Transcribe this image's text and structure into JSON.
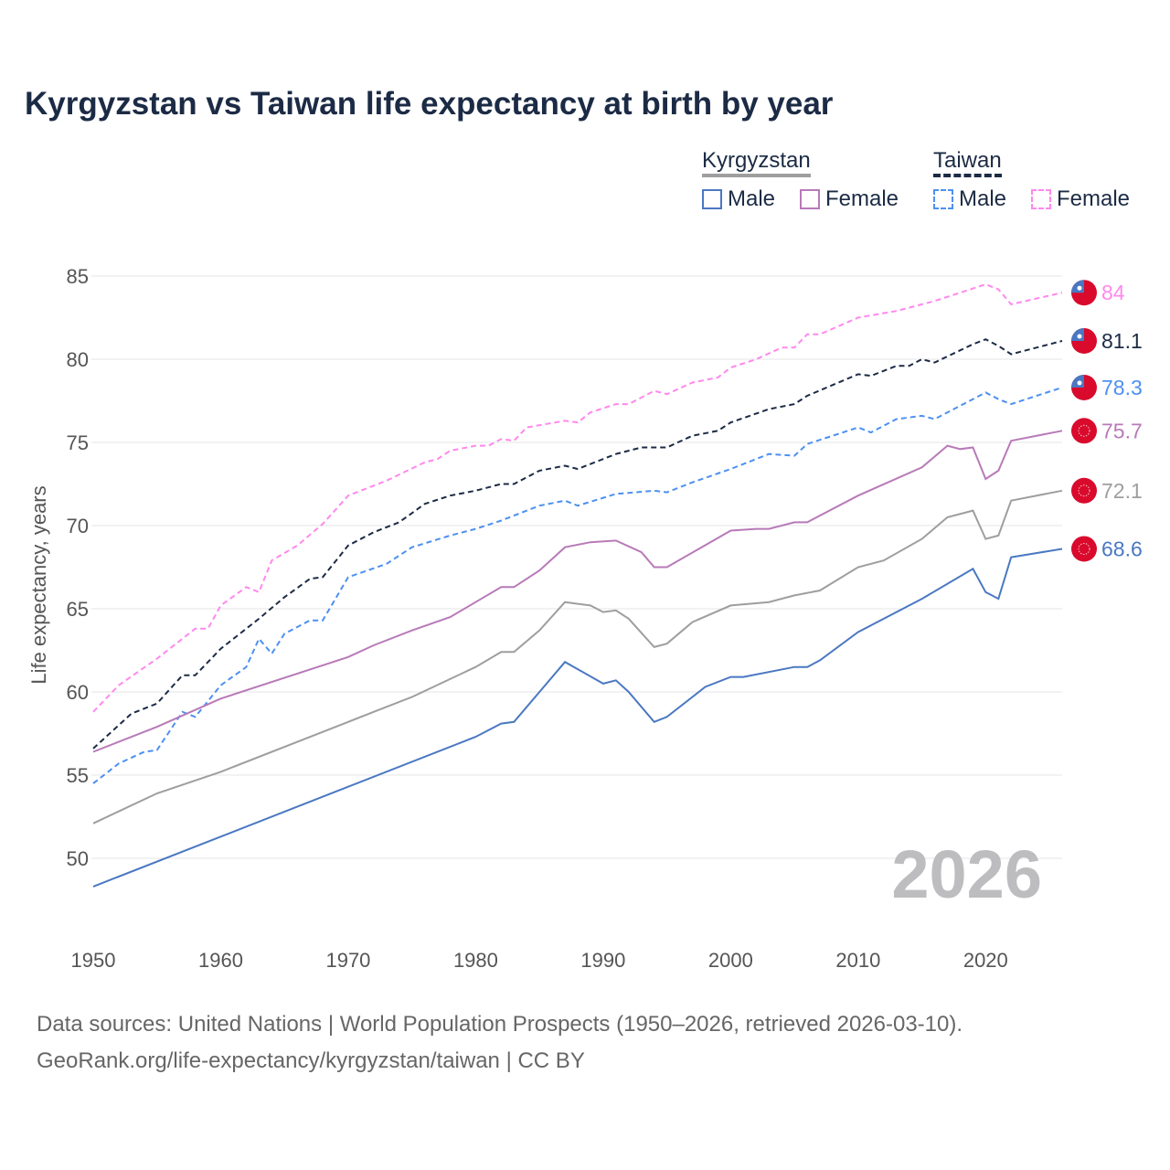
{
  "title": "Kyrgyzstan vs Taiwan life expectancy at birth by year",
  "legend": {
    "groups": [
      {
        "name": "Kyrgyzstan",
        "items": [
          "Male",
          "Female"
        ]
      },
      {
        "name": "Taiwan",
        "items": [
          "Male",
          "Female"
        ]
      }
    ]
  },
  "footer": {
    "line1": "Data sources: United Nations | World Population Prospects (1950–2026, retrieved 2026-03-10).",
    "line2": "GeoRank.org/life-expectancy/kyrgyzstan/taiwan | CC BY"
  },
  "chart_data": {
    "type": "line",
    "title": "Kyrgyzstan vs Taiwan life expectancy at birth by year",
    "xlabel": "",
    "ylabel": "Life expectancy, years",
    "xlim": [
      1950,
      2026
    ],
    "ylim": [
      47,
      87
    ],
    "xticks": [
      1950,
      1960,
      1970,
      1980,
      1990,
      2000,
      2010,
      2020
    ],
    "yticks": [
      50,
      55,
      60,
      65,
      70,
      75,
      80,
      85
    ],
    "grid": true,
    "watermark_year": "2026",
    "series": [
      {
        "name": "Taiwan Female",
        "country": "Taiwan",
        "color": "#ff88ee",
        "dashed": true,
        "end_label": "84",
        "x": [
          1950,
          1952,
          1955,
          1958,
          1959,
          1960,
          1962,
          1963,
          1964,
          1966,
          1968,
          1970,
          1973,
          1976,
          1977,
          1978,
          1980,
          1981,
          1982,
          1983,
          1984,
          1987,
          1988,
          1989,
          1991,
          1992,
          1994,
          1995,
          1997,
          1999,
          2000,
          2002,
          2004,
          2005,
          2006,
          2007,
          2010,
          2013,
          2014,
          2016,
          2020,
          2021,
          2022,
          2026
        ],
        "y": [
          58.8,
          60.4,
          62.0,
          63.8,
          63.8,
          65.2,
          66.3,
          66.0,
          67.9,
          68.8,
          70.1,
          71.8,
          72.7,
          73.8,
          74.0,
          74.5,
          74.8,
          74.8,
          75.2,
          75.1,
          75.9,
          76.3,
          76.2,
          76.8,
          77.3,
          77.3,
          78.1,
          77.9,
          78.6,
          78.9,
          79.5,
          80.0,
          80.7,
          80.7,
          81.5,
          81.5,
          82.5,
          82.9,
          83.1,
          83.5,
          84.5,
          84.2,
          83.3,
          84.0
        ]
      },
      {
        "name": "Taiwan",
        "country": "Taiwan",
        "color": "#1c2b45",
        "dashed": true,
        "end_label": "81.1",
        "x": [
          1950,
          1953,
          1955,
          1957,
          1958,
          1960,
          1963,
          1965,
          1967,
          1968,
          1970,
          1972,
          1974,
          1976,
          1978,
          1980,
          1982,
          1983,
          1985,
          1987,
          1988,
          1991,
          1993,
          1995,
          1997,
          1999,
          2000,
          2003,
          2005,
          2006,
          2010,
          2011,
          2013,
          2014,
          2015,
          2016,
          2019,
          2020,
          2021,
          2022,
          2026
        ],
        "y": [
          56.6,
          58.7,
          59.3,
          61.0,
          61.0,
          62.6,
          64.4,
          65.7,
          66.8,
          66.9,
          68.8,
          69.6,
          70.2,
          71.3,
          71.8,
          72.1,
          72.5,
          72.5,
          73.3,
          73.6,
          73.4,
          74.3,
          74.7,
          74.7,
          75.4,
          75.7,
          76.2,
          77.0,
          77.3,
          77.8,
          79.1,
          79.0,
          79.6,
          79.6,
          80.0,
          79.8,
          80.9,
          81.2,
          80.8,
          80.3,
          81.1
        ]
      },
      {
        "name": "Taiwan Male",
        "country": "Taiwan",
        "color": "#4d90f0",
        "dashed": true,
        "end_label": "78.3",
        "x": [
          1950,
          1952,
          1954,
          1955,
          1957,
          1958,
          1960,
          1962,
          1963,
          1964,
          1965,
          1967,
          1968,
          1970,
          1973,
          1975,
          1978,
          1980,
          1982,
          1985,
          1987,
          1988,
          1991,
          1994,
          1995,
          1997,
          2000,
          2003,
          2005,
          2006,
          2010,
          2011,
          2013,
          2015,
          2016,
          2019,
          2020,
          2021,
          2022,
          2026
        ],
        "y": [
          54.5,
          55.7,
          56.4,
          56.5,
          58.8,
          58.5,
          60.4,
          61.5,
          63.2,
          62.3,
          63.5,
          64.3,
          64.3,
          66.9,
          67.7,
          68.7,
          69.4,
          69.8,
          70.3,
          71.2,
          71.5,
          71.2,
          71.9,
          72.1,
          72.0,
          72.6,
          73.4,
          74.3,
          74.2,
          74.9,
          75.9,
          75.6,
          76.4,
          76.6,
          76.4,
          77.6,
          78.0,
          77.6,
          77.3,
          78.3
        ]
      },
      {
        "name": "Kyrgyzstan Female",
        "country": "Kyrgyzstan",
        "color": "#b87ab8",
        "dashed": false,
        "end_label": "75.7",
        "x": [
          1950,
          1955,
          1960,
          1970,
          1972,
          1975,
          1978,
          1980,
          1982,
          1983,
          1985,
          1987,
          1989,
          1991,
          1993,
          1994,
          1995,
          2000,
          2002,
          2003,
          2005,
          2006,
          2010,
          2015,
          2017,
          2018,
          2019,
          2020,
          2021,
          2022,
          2026
        ],
        "y": [
          56.4,
          57.9,
          59.6,
          62.1,
          62.8,
          63.7,
          64.5,
          65.4,
          66.3,
          66.3,
          67.3,
          68.7,
          69.0,
          69.1,
          68.4,
          67.5,
          67.5,
          69.7,
          69.8,
          69.8,
          70.2,
          70.2,
          71.8,
          73.5,
          74.8,
          74.6,
          74.7,
          72.8,
          73.3,
          75.1,
          75.7
        ]
      },
      {
        "name": "Kyrgyzstan",
        "country": "Kyrgyzstan",
        "color": "#9e9e9e",
        "dashed": false,
        "end_label": "72.1",
        "x": [
          1950,
          1955,
          1960,
          1970,
          1972,
          1975,
          1980,
          1982,
          1983,
          1985,
          1987,
          1989,
          1990,
          1991,
          1992,
          1994,
          1995,
          1997,
          2000,
          2003,
          2005,
          2007,
          2010,
          2012,
          2015,
          2017,
          2019,
          2020,
          2021,
          2022,
          2026
        ],
        "y": [
          52.1,
          53.9,
          55.2,
          58.2,
          58.8,
          59.7,
          61.5,
          62.4,
          62.4,
          63.7,
          65.4,
          65.2,
          64.8,
          64.9,
          64.4,
          62.7,
          62.9,
          64.2,
          65.2,
          65.4,
          65.8,
          66.1,
          67.5,
          67.9,
          69.2,
          70.5,
          70.9,
          69.2,
          69.4,
          71.5,
          72.1
        ]
      },
      {
        "name": "Kyrgyzstan Male",
        "country": "Kyrgyzstan",
        "color": "#4a78c2",
        "dashed": false,
        "end_label": "68.6",
        "x": [
          1950,
          1960,
          1970,
          1980,
          1982,
          1983,
          1985,
          1987,
          1990,
          1991,
          1992,
          1994,
          1995,
          1997,
          1998,
          2000,
          2001,
          2005,
          2006,
          2007,
          2010,
          2015,
          2019,
          2020,
          2021,
          2022,
          2026
        ],
        "y": [
          48.3,
          51.3,
          54.3,
          57.3,
          58.1,
          58.2,
          60.0,
          61.8,
          60.5,
          60.7,
          60.0,
          58.2,
          58.5,
          59.7,
          60.3,
          60.9,
          60.9,
          61.5,
          61.5,
          61.9,
          63.6,
          65.6,
          67.4,
          66.0,
          65.6,
          68.1,
          68.6
        ]
      }
    ]
  }
}
